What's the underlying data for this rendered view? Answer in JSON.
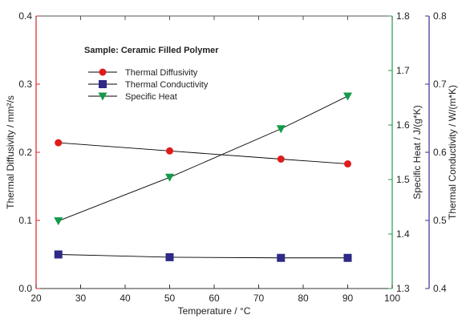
{
  "colors": {
    "left_axis": "#e02020",
    "right_axis_1": "#1f9e4a",
    "right_axis_2": "#3a2d8c",
    "diffusivity": "#e01b1b",
    "conductivity": "#2e2a86",
    "specific_heat": "#139b4a",
    "line": "#000000"
  },
  "chart_data": {
    "type": "line",
    "annotation": "Sample: Ceramic Filled Polymer",
    "xlabel": "Temperature / °C",
    "xlim": [
      20,
      100
    ],
    "x_ticks": [
      "20",
      "30",
      "40",
      "50",
      "60",
      "70",
      "80",
      "90",
      "100"
    ],
    "grid": false,
    "legend_position": "top-left",
    "axes": {
      "left": {
        "label": "Thermal Diffusivity / mm²/s",
        "lim": [
          0.0,
          0.4
        ],
        "ticks": [
          "0.0",
          "0.1",
          "0.2",
          "0.3",
          "0.4"
        ]
      },
      "right1": {
        "label": "Specific Heat / J/(g*K)",
        "lim": [
          1.3,
          1.8
        ],
        "ticks": [
          "1.3",
          "1.4",
          "1.5",
          "1.6",
          "1.7",
          "1.8"
        ]
      },
      "right2": {
        "label": "Thermal Conductivity / W/(m*K)",
        "lim": [
          0.4,
          0.8
        ],
        "ticks": [
          "0.4",
          "0.5",
          "0.6",
          "0.7",
          "0.8"
        ]
      }
    },
    "series": [
      {
        "name": "Thermal Diffusivity",
        "axis": "left",
        "marker": "circle",
        "color": "#e01b1b",
        "x": [
          25,
          50,
          75,
          90
        ],
        "y": [
          0.214,
          0.202,
          0.19,
          0.183
        ]
      },
      {
        "name": "Thermal Conductivity",
        "axis": "right2",
        "marker": "square",
        "color": "#2e2a86",
        "x": [
          25,
          50,
          75,
          90
        ],
        "y": [
          0.45,
          0.446,
          0.445,
          0.445
        ]
      },
      {
        "name": "Specific Heat",
        "axis": "right1",
        "marker": "triangle-down",
        "color": "#139b4a",
        "x": [
          25,
          50,
          75,
          90
        ],
        "y": [
          1.424,
          1.504,
          1.593,
          1.653
        ]
      }
    ]
  }
}
